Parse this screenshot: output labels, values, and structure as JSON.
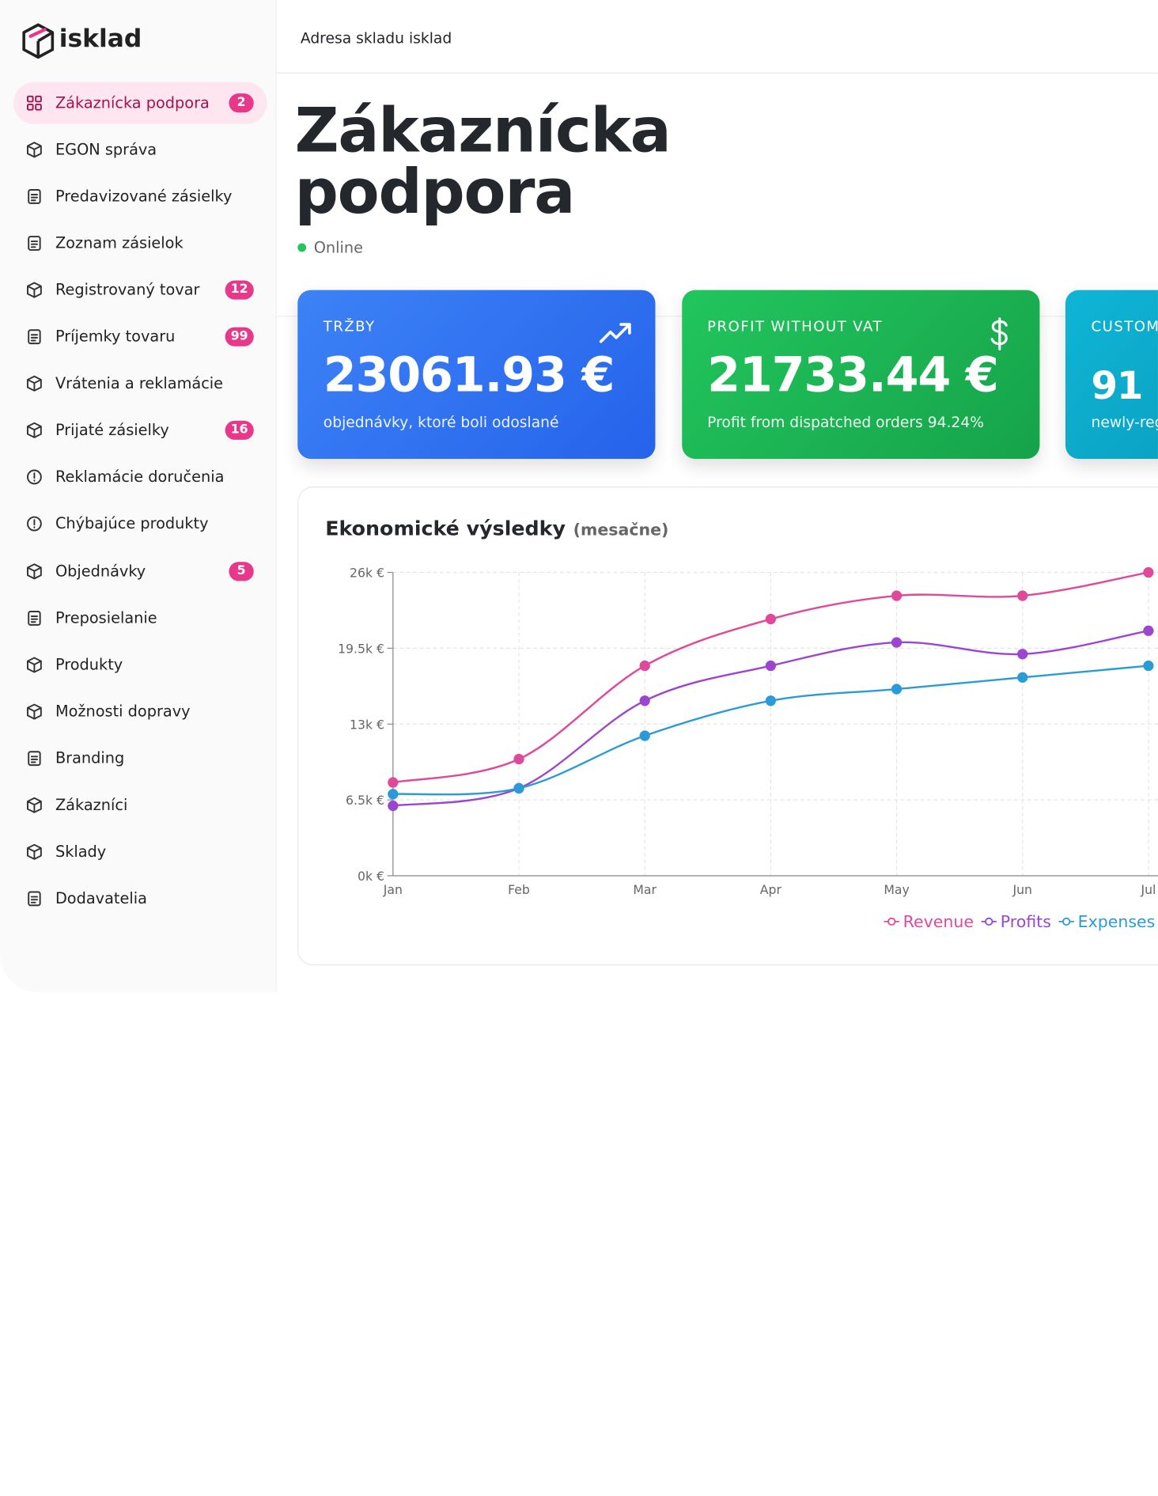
{
  "logo": "isklad",
  "header": {
    "title": "Adresa skladu isklad"
  },
  "sidebar": {
    "items": [
      {
        "label": "Zákaznícka podpora",
        "badge": 2
      },
      {
        "label": "EGON správa"
      },
      {
        "label": "Predavizované zásielky"
      },
      {
        "label": "Zoznam zásielok"
      },
      {
        "label": "Registrovaný tovar",
        "badge": 12
      },
      {
        "label": "Príjemky tovaru",
        "badge": 99
      },
      {
        "label": "Vrátenia a reklamácie"
      },
      {
        "label": "Prijaté zásielky",
        "badge": 16
      },
      {
        "label": "Reklamácie doručenia"
      },
      {
        "label": "Chýbajúce produkty"
      },
      {
        "label": "Objednávky",
        "badge": 5
      },
      {
        "label": "Preposielanie"
      },
      {
        "label": "Produkty"
      },
      {
        "label": "Možnosti dopravy"
      },
      {
        "label": "Branding"
      },
      {
        "label": "Zákazníci"
      },
      {
        "label": "Sklady"
      },
      {
        "label": "Dodavatelia"
      }
    ]
  },
  "page": {
    "title": "Zákaznícka podpora",
    "status": "Online"
  },
  "cards": [
    {
      "label": "TRŽBY",
      "value": "23061.93 €",
      "note": "objednávky, ktoré boli odoslané"
    },
    {
      "label": "PROFIT WITHOUT VAT",
      "value": "21733.44 €",
      "note": "Profit from dispatched orders 94.24%"
    },
    {
      "label": "CUSTOM",
      "value": "91",
      "note": "newly-reg"
    }
  ],
  "chart_data": {
    "type": "line",
    "title": "Ekonomické výsledky",
    "subtitle": "(mesačne)",
    "categories": [
      "Jan",
      "Feb",
      "Mar",
      "Apr",
      "May",
      "Jun",
      "Jul"
    ],
    "series": [
      {
        "name": "Revenue",
        "color": "#e0489a",
        "values": [
          8000,
          10000,
          18000,
          22000,
          24000,
          24000,
          26000
        ]
      },
      {
        "name": "Profits",
        "color": "#9b45d1",
        "values": [
          6000,
          7500,
          15000,
          18000,
          20000,
          19000,
          21000
        ]
      },
      {
        "name": "Expenses",
        "color": "#2a9bd8",
        "values": [
          7000,
          7500,
          12000,
          15000,
          16000,
          17000,
          18000
        ]
      }
    ],
    "ylim": [
      0,
      26000
    ],
    "yticks": [
      {
        "value": 0,
        "label": "0k €"
      },
      {
        "value": 6500,
        "label": "6.5k €"
      },
      {
        "value": 13000,
        "label": "13k €"
      },
      {
        "value": 19500,
        "label": "19.5k €"
      },
      {
        "value": 26000,
        "label": "26k €"
      }
    ],
    "grid": true,
    "legend": "bottom-right"
  }
}
